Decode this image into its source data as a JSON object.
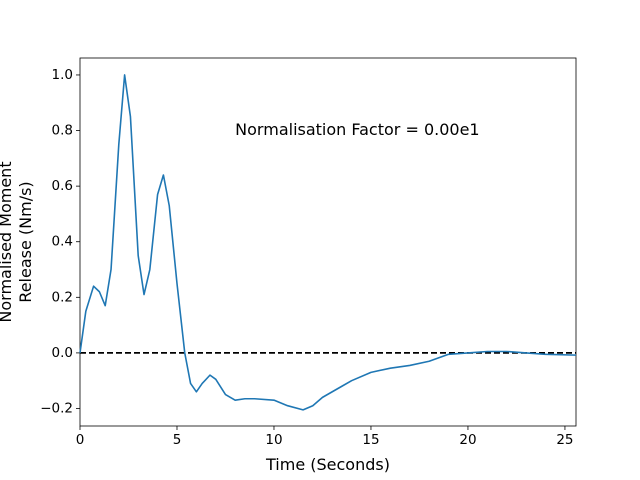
{
  "chart_data": {
    "type": "line",
    "xlabel": "Time (Seconds)",
    "ylabel": [
      "Normalised Moment",
      "Release (Nm/s)"
    ],
    "annotation": {
      "text": "Normalisation Factor = 0.00e1",
      "x": 8,
      "y": 0.8
    },
    "hline": {
      "y": 0,
      "color": "#000000",
      "style": "dashed"
    },
    "x": [
      0,
      0.3,
      0.7,
      1.0,
      1.3,
      1.6,
      2.0,
      2.3,
      2.6,
      3.0,
      3.3,
      3.6,
      4.0,
      4.3,
      4.6,
      5.0,
      5.4,
      5.7,
      6.0,
      6.3,
      6.7,
      7.0,
      7.5,
      8.0,
      8.5,
      9.0,
      10.0,
      10.7,
      11.5,
      12.0,
      12.5,
      13.5,
      14.0,
      15.0,
      16.0,
      17.0,
      18.0,
      19.0,
      20.0,
      21.0,
      22.0,
      23.0,
      24.0,
      25.57
    ],
    "series": [
      {
        "name": "Normalised Moment Release",
        "color": "#1f77b4",
        "values": [
          0,
          0.15,
          0.24,
          0.22,
          0.17,
          0.3,
          0.75,
          1.0,
          0.85,
          0.35,
          0.21,
          0.3,
          0.57,
          0.64,
          0.53,
          0.25,
          0.0,
          -0.11,
          -0.14,
          -0.11,
          -0.08,
          -0.095,
          -0.15,
          -0.17,
          -0.165,
          -0.165,
          -0.17,
          -0.19,
          -0.205,
          -0.19,
          -0.16,
          -0.12,
          -0.1,
          -0.07,
          -0.055,
          -0.045,
          -0.03,
          -0.005,
          0.0,
          0.005,
          0.005,
          0.0,
          -0.005,
          -0.008
        ]
      }
    ],
    "xlim": [
      0,
      25.57
    ],
    "ylim": [
      -0.263,
      1.061
    ],
    "xticks": [
      0,
      5,
      10,
      15,
      20,
      25
    ],
    "yticks": [
      {
        "value": -0.2,
        "label": "−0.2"
      },
      {
        "value": 0,
        "label": "0.0"
      },
      {
        "value": 0.2,
        "label": "0.2"
      },
      {
        "value": 0.4,
        "label": "0.4"
      },
      {
        "value": 0.6,
        "label": "0.6"
      },
      {
        "value": 0.8,
        "label": "0.8"
      },
      {
        "value": 1.0,
        "label": "1.0"
      }
    ],
    "grid": false
  }
}
